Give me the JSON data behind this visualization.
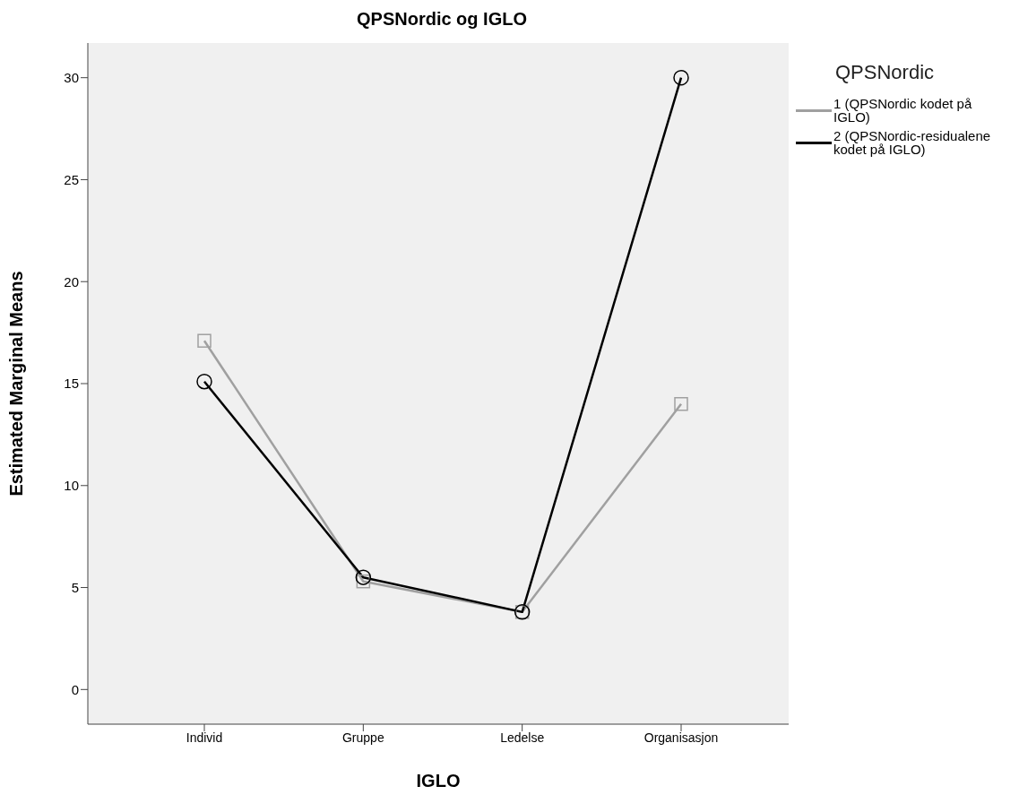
{
  "chart_data": {
    "type": "line",
    "title": "QPSNordic og IGLO",
    "xlabel": "IGLO",
    "ylabel": "Estimated Marginal Means",
    "legend_title": "QPSNordic",
    "categories": [
      "Individ",
      "Gruppe",
      "Ledelse",
      "Organisasjon"
    ],
    "series": [
      {
        "name": "1 (QPSNordic kodet på IGLO)",
        "color": "#a0a0a0",
        "values": [
          17.1,
          5.3,
          3.8,
          14.0
        ],
        "marker": "square"
      },
      {
        "name": "2 (QPSNordic-residualene kodet på IGLO)",
        "color": "#000000",
        "values": [
          15.1,
          5.5,
          3.8,
          30.0
        ],
        "marker": "circle"
      }
    ],
    "ylim": [
      -1.7,
      31.7
    ],
    "yticks": [
      0,
      5,
      10,
      15,
      20,
      25,
      30
    ],
    "grid": false,
    "legend": "right",
    "line_style": "solid"
  }
}
